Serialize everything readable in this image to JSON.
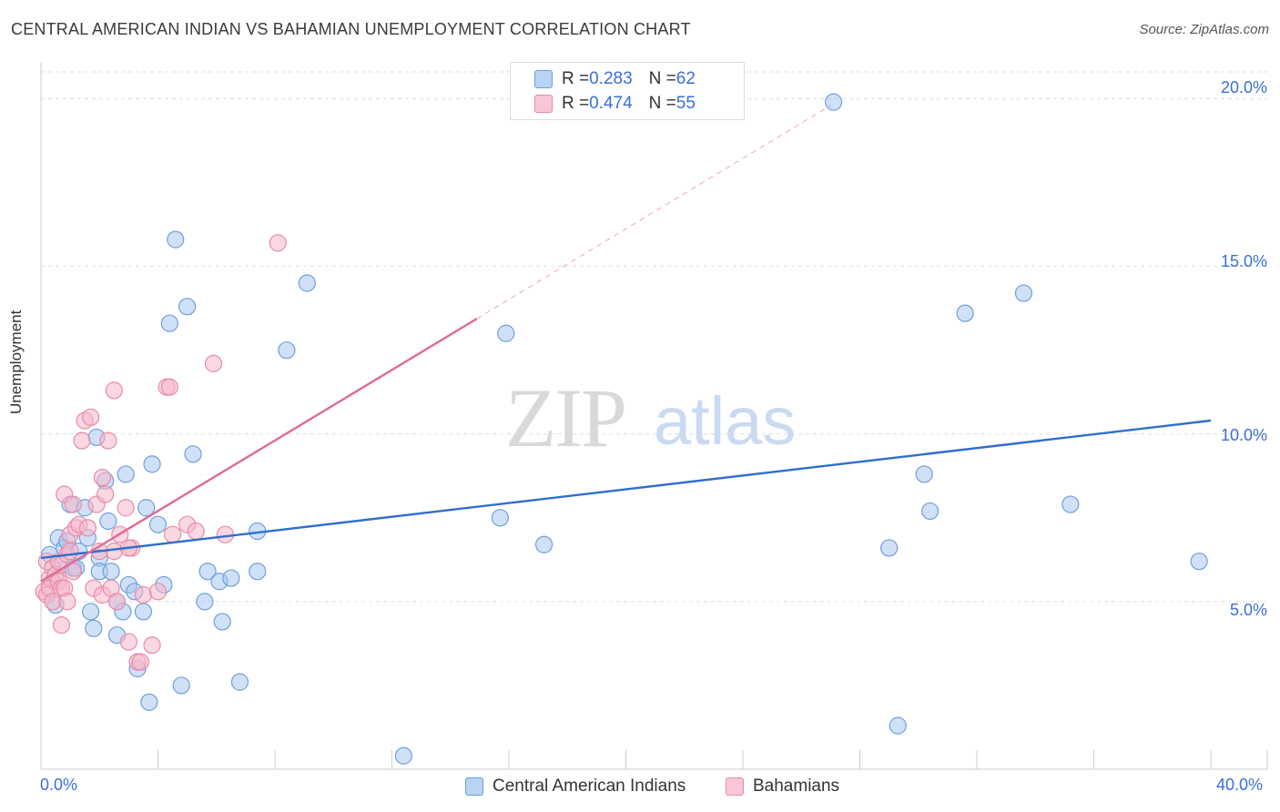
{
  "title": "CENTRAL AMERICAN INDIAN VS BAHAMIAN UNEMPLOYMENT CORRELATION CHART",
  "source": "Source: ZipAtlas.com",
  "watermark": {
    "zip": "ZIP",
    "atlas": "atlas"
  },
  "colors": {
    "blue_fill": "#a9c8f0",
    "blue_stroke": "#6f9edc",
    "blue_line": "#2f6fcc",
    "pink_fill": "#f5b8cb",
    "pink_stroke": "#e88aa8",
    "pink_line": "#e06a94",
    "tick_text": "#3a6fd8",
    "grid": "#dddddd"
  },
  "legend_top": {
    "rows": [
      {
        "r_label": "R = ",
        "r_value": "0.283",
        "n_label": "N = ",
        "n_value": "62",
        "series": "blue"
      },
      {
        "r_label": "R = ",
        "r_value": "0.474",
        "n_label": "N = ",
        "n_value": "55",
        "series": "pink"
      }
    ]
  },
  "chart_data": {
    "type": "scatter",
    "title": "CENTRAL AMERICAN INDIAN VS BAHAMIAN UNEMPLOYMENT CORRELATION CHART",
    "xlabel": "",
    "ylabel": "Unemployment",
    "xlim": [
      0,
      40
    ],
    "ylim": [
      0,
      20.8
    ],
    "x_tick_labels": [
      {
        "value": 0,
        "label": "0.0%"
      },
      {
        "value": 40,
        "label": "40.0%"
      }
    ],
    "y_tick_labels": [
      {
        "value": 5,
        "label": "5.0%"
      },
      {
        "value": 10,
        "label": "10.0%"
      },
      {
        "value": 15,
        "label": "15.0%"
      },
      {
        "value": 20,
        "label": "20.0%"
      }
    ],
    "series": [
      {
        "name": "Central American Indians",
        "color": "blue",
        "trend": {
          "x0": 0,
          "y0": 6.3,
          "x1": 40,
          "y1": 10.4,
          "solid_to": 40
        },
        "points": [
          [
            0.3,
            6.4
          ],
          [
            0.4,
            5.6
          ],
          [
            0.5,
            4.9
          ],
          [
            0.6,
            6.9
          ],
          [
            0.7,
            6.1
          ],
          [
            0.8,
            6.6
          ],
          [
            0.9,
            6.8
          ],
          [
            1.0,
            7.9
          ],
          [
            1.1,
            6.0
          ],
          [
            1.2,
            6.0
          ],
          [
            1.3,
            6.5
          ],
          [
            1.5,
            7.8
          ],
          [
            1.6,
            6.9
          ],
          [
            1.7,
            4.7
          ],
          [
            1.8,
            4.2
          ],
          [
            1.9,
            9.9
          ],
          [
            2.0,
            6.3
          ],
          [
            2.0,
            5.9
          ],
          [
            2.2,
            8.6
          ],
          [
            2.3,
            7.4
          ],
          [
            2.4,
            5.9
          ],
          [
            2.6,
            4.0
          ],
          [
            2.6,
            5.0
          ],
          [
            2.8,
            4.7
          ],
          [
            2.9,
            8.8
          ],
          [
            3.0,
            5.5
          ],
          [
            3.2,
            5.3
          ],
          [
            3.3,
            3.0
          ],
          [
            3.5,
            4.7
          ],
          [
            3.6,
            7.8
          ],
          [
            3.7,
            2.0
          ],
          [
            3.8,
            9.1
          ],
          [
            4.0,
            7.3
          ],
          [
            4.2,
            5.5
          ],
          [
            4.4,
            13.3
          ],
          [
            4.6,
            15.8
          ],
          [
            4.8,
            2.5
          ],
          [
            5.0,
            13.8
          ],
          [
            5.2,
            9.4
          ],
          [
            5.6,
            5.0
          ],
          [
            5.7,
            5.9
          ],
          [
            6.1,
            5.6
          ],
          [
            6.2,
            4.4
          ],
          [
            6.5,
            5.7
          ],
          [
            6.8,
            2.6
          ],
          [
            7.4,
            7.1
          ],
          [
            7.4,
            5.9
          ],
          [
            8.4,
            12.5
          ],
          [
            9.1,
            14.5
          ],
          [
            12.4,
            0.4
          ],
          [
            15.7,
            7.5
          ],
          [
            15.9,
            13.0
          ],
          [
            17.2,
            6.7
          ],
          [
            27.1,
            19.9
          ],
          [
            29.0,
            6.6
          ],
          [
            29.3,
            1.3
          ],
          [
            30.2,
            8.8
          ],
          [
            30.4,
            7.7
          ],
          [
            31.6,
            13.6
          ],
          [
            33.6,
            14.2
          ],
          [
            35.2,
            7.9
          ],
          [
            39.6,
            6.2
          ]
        ]
      },
      {
        "name": "Bahamians",
        "color": "pink",
        "trend": {
          "x0": 0,
          "y0": 5.6,
          "x1": 27,
          "y1": 19.8,
          "solid_to": 14.9
        },
        "points": [
          [
            0.1,
            5.3
          ],
          [
            0.2,
            6.2
          ],
          [
            0.2,
            5.2
          ],
          [
            0.3,
            5.7
          ],
          [
            0.3,
            5.4
          ],
          [
            0.4,
            6.0
          ],
          [
            0.4,
            5.0
          ],
          [
            0.5,
            5.8
          ],
          [
            0.6,
            6.2
          ],
          [
            0.6,
            5.6
          ],
          [
            0.7,
            5.4
          ],
          [
            0.7,
            4.3
          ],
          [
            0.8,
            8.2
          ],
          [
            0.8,
            5.4
          ],
          [
            0.9,
            6.4
          ],
          [
            0.9,
            5.0
          ],
          [
            1.0,
            7.0
          ],
          [
            1.0,
            6.5
          ],
          [
            1.1,
            5.9
          ],
          [
            1.1,
            7.9
          ],
          [
            1.2,
            7.2
          ],
          [
            1.3,
            7.3
          ],
          [
            1.4,
            9.8
          ],
          [
            1.5,
            10.4
          ],
          [
            1.6,
            7.2
          ],
          [
            1.7,
            10.5
          ],
          [
            1.8,
            5.4
          ],
          [
            1.9,
            7.9
          ],
          [
            2.1,
            8.7
          ],
          [
            2.1,
            5.2
          ],
          [
            2.2,
            8.2
          ],
          [
            2.3,
            9.8
          ],
          [
            2.4,
            5.4
          ],
          [
            2.5,
            11.3
          ],
          [
            2.5,
            6.5
          ],
          [
            2.6,
            5.0
          ],
          [
            2.7,
            7.0
          ],
          [
            2.9,
            7.8
          ],
          [
            3.0,
            3.8
          ],
          [
            3.1,
            6.6
          ],
          [
            3.3,
            3.2
          ],
          [
            3.4,
            3.2
          ],
          [
            3.5,
            5.2
          ],
          [
            3.8,
            3.7
          ],
          [
            4.0,
            5.3
          ],
          [
            4.3,
            11.4
          ],
          [
            4.4,
            11.4
          ],
          [
            4.5,
            7.0
          ],
          [
            5.0,
            7.3
          ],
          [
            5.3,
            7.1
          ],
          [
            5.9,
            12.1
          ],
          [
            6.3,
            7.0
          ],
          [
            8.1,
            15.7
          ],
          [
            3.0,
            6.6
          ],
          [
            2.0,
            6.5
          ]
        ]
      }
    ],
    "legend_bottom": [
      "Central American Indians",
      "Bahamians"
    ]
  }
}
